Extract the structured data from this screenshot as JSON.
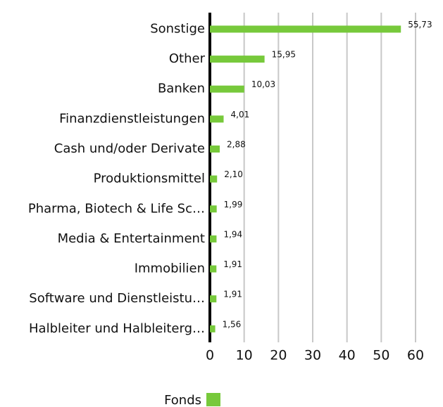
{
  "chart_data": {
    "type": "bar",
    "orientation": "horizontal",
    "categories": [
      "Sonstige",
      "Other",
      "Banken",
      "Finanzdienstleistungen",
      "Cash und/oder Derivate",
      "Produktionsmittel",
      "Pharma, Biotech & Life Sc…",
      "Media & Entertainment",
      "Immobilien",
      "Software und Dienstleistu…",
      "Halbleiter und Halbleiterg…"
    ],
    "series": [
      {
        "name": "Fonds",
        "color": "#77c93b",
        "values": [
          55.73,
          15.95,
          10.03,
          4.01,
          2.88,
          2.1,
          1.99,
          1.94,
          1.91,
          1.91,
          1.56
        ],
        "value_labels": [
          "55,73",
          "15,95",
          "10,03",
          "4,01",
          "2,88",
          "2,10",
          "1,99",
          "1,94",
          "1,91",
          "1,91",
          "1,56"
        ]
      }
    ],
    "xlim": [
      0,
      60
    ],
    "xticks": [
      0,
      10,
      20,
      30,
      40,
      50,
      60
    ],
    "grid": true,
    "legend": "bottom"
  }
}
